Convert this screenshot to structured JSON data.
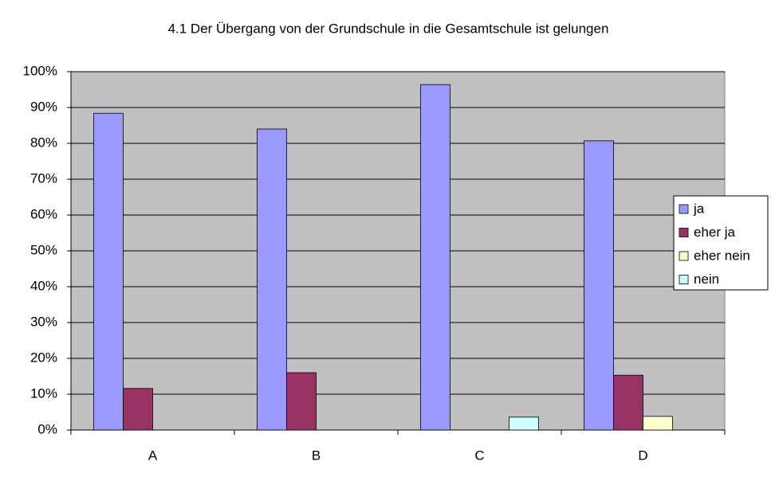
{
  "chart_data": {
    "type": "bar",
    "title": "4.1 Der Übergang von der Grundschule in die Gesamtschule ist gelungen",
    "categories": [
      "A",
      "B",
      "C",
      "D"
    ],
    "series": [
      {
        "name": "ja",
        "color": "#9999ff",
        "values": [
          88.4,
          84.0,
          96.4,
          80.7
        ]
      },
      {
        "name": "eher ja",
        "color": "#993366",
        "values": [
          11.6,
          16.0,
          0,
          15.3
        ]
      },
      {
        "name": "eher nein",
        "color": "#ffffcc",
        "values": [
          0,
          0,
          0,
          3.8
        ]
      },
      {
        "name": "nein",
        "color": "#ccffff",
        "values": [
          0,
          0,
          3.6,
          0
        ]
      }
    ],
    "ylim": [
      0,
      100
    ],
    "yticks": [
      {
        "value": 0,
        "label": "0%"
      },
      {
        "value": 10,
        "label": "10%"
      },
      {
        "value": 20,
        "label": "20%"
      },
      {
        "value": 30,
        "label": "30%"
      },
      {
        "value": 40,
        "label": "40%"
      },
      {
        "value": 50,
        "label": "50%"
      },
      {
        "value": 60,
        "label": "60%"
      },
      {
        "value": 70,
        "label": "70%"
      },
      {
        "value": 80,
        "label": "80%"
      },
      {
        "value": 90,
        "label": "90%"
      },
      {
        "value": 100,
        "label": "100%"
      }
    ],
    "grid": true,
    "legend": "right"
  }
}
